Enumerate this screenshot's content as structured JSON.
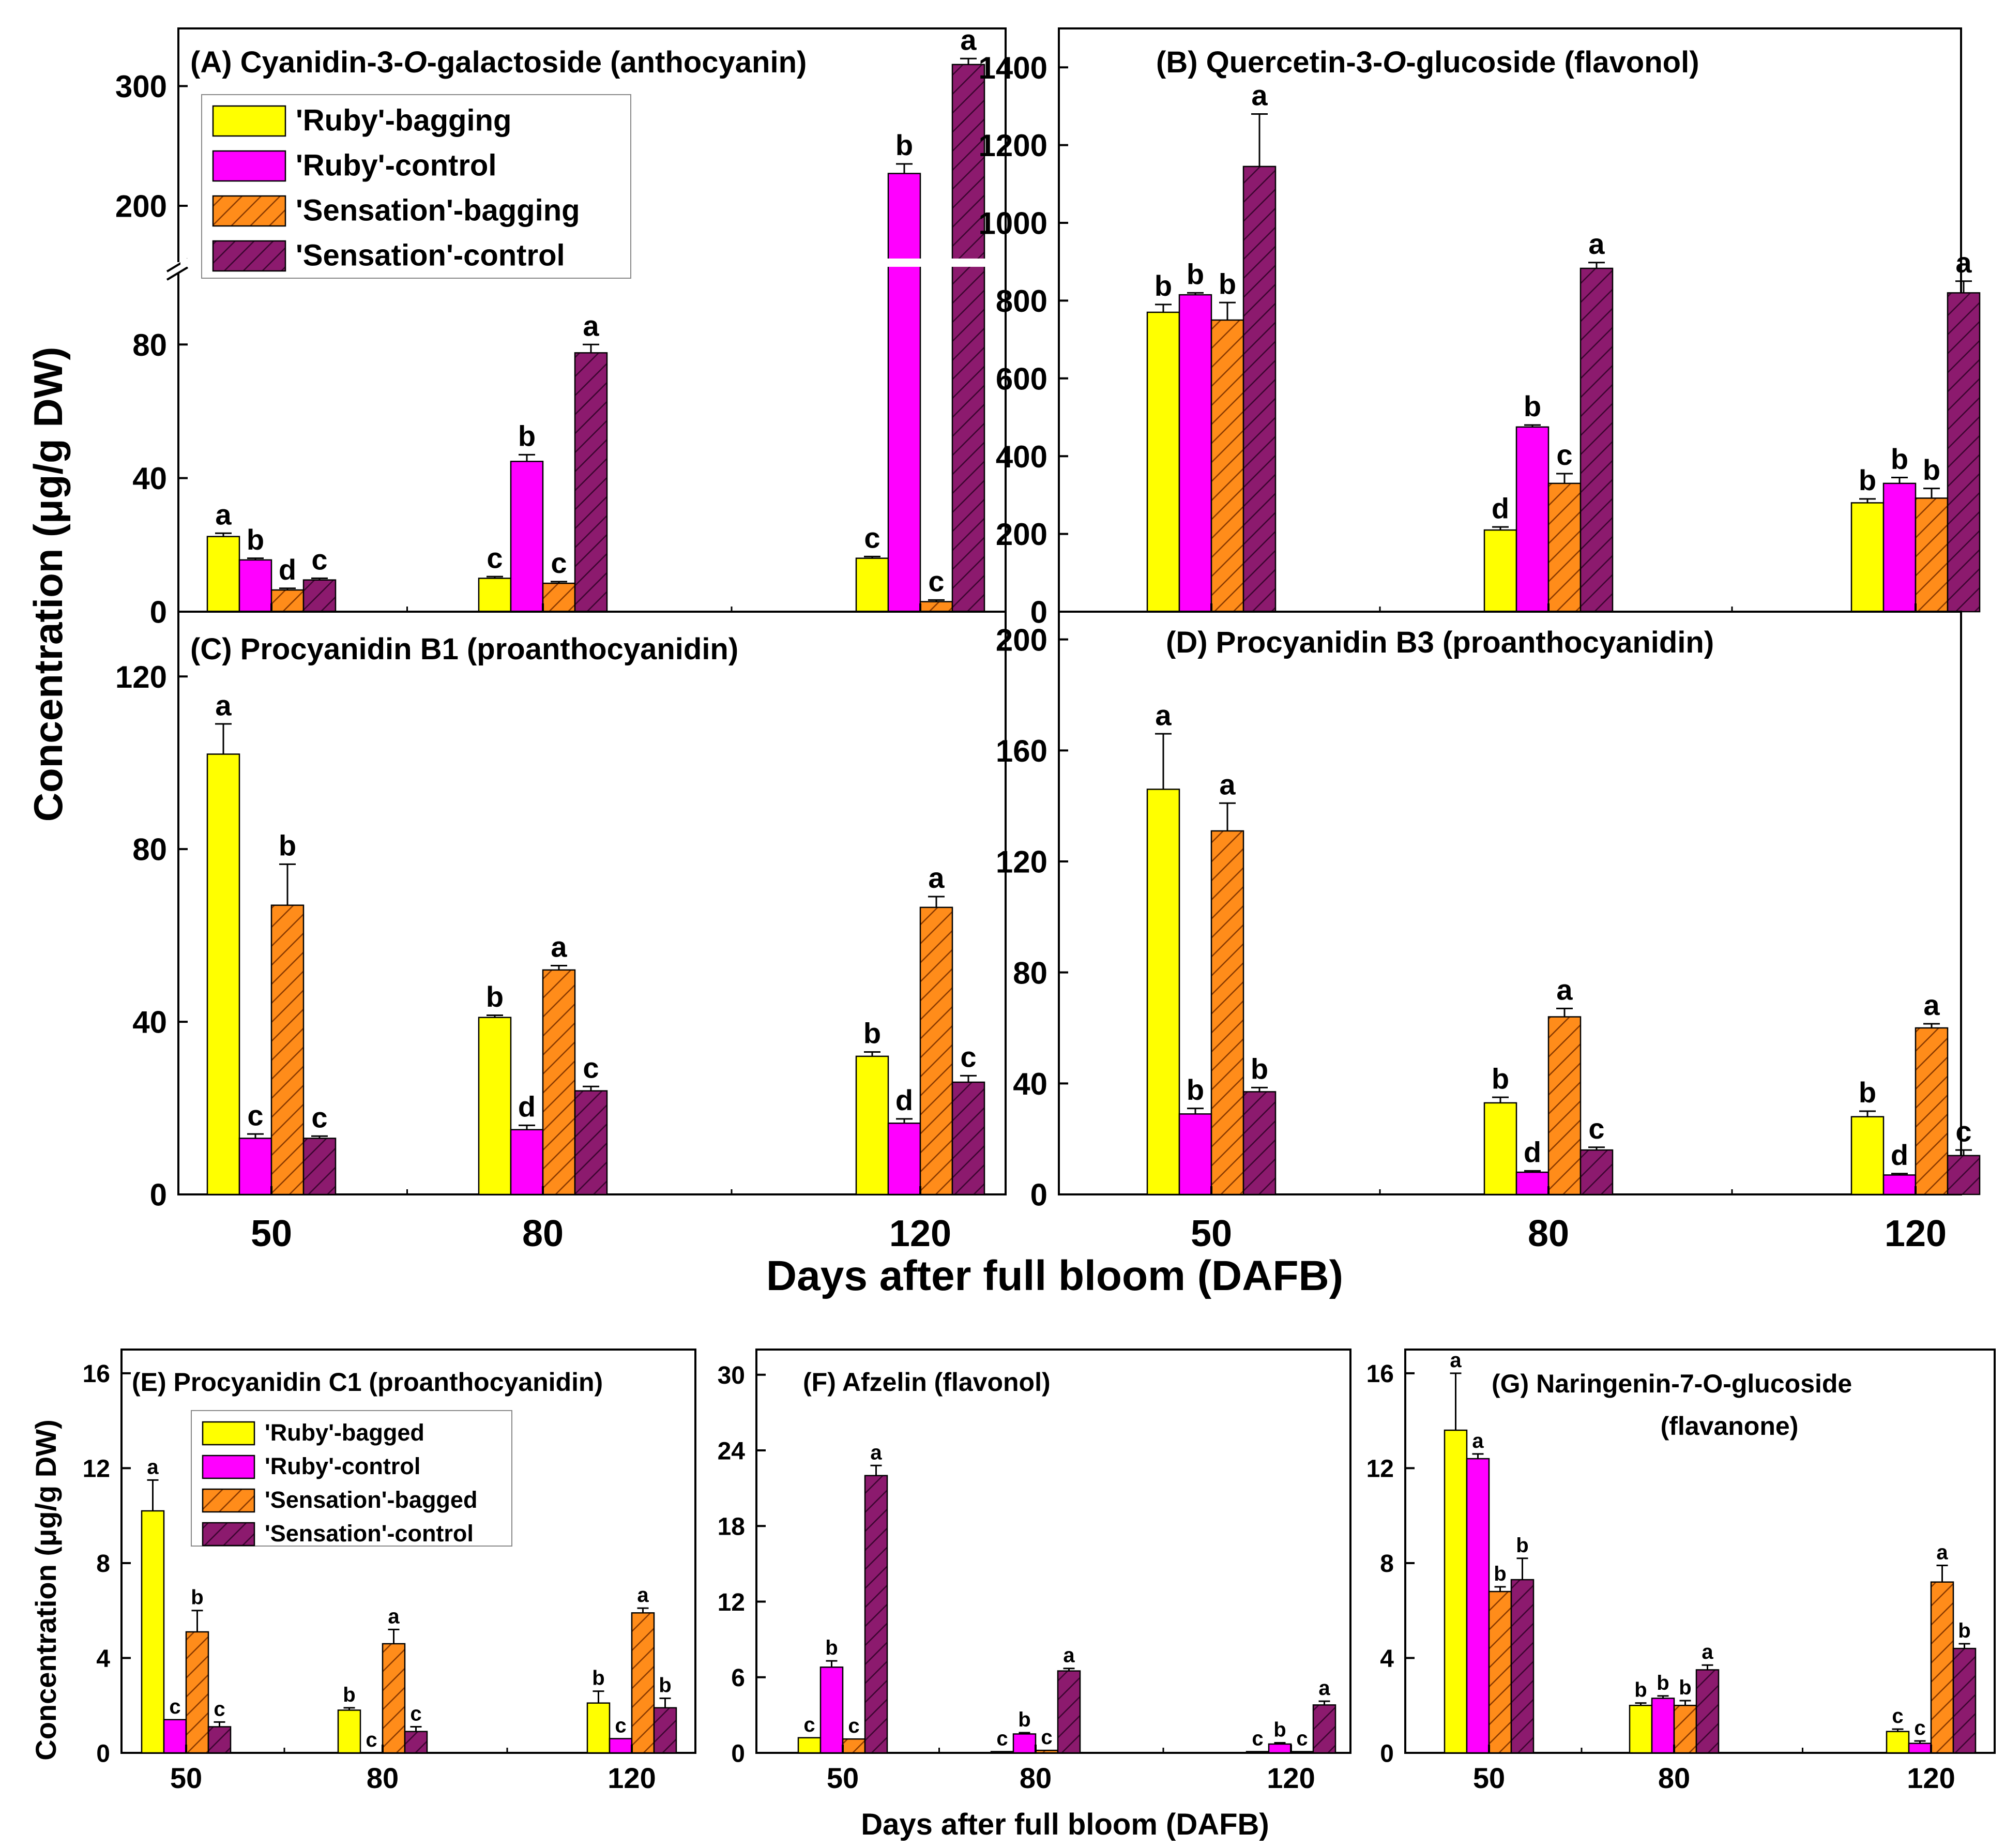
{
  "figure": {
    "top_ylabel": "Concentration (μg/g DW)",
    "top_xlabel": "Days after full bloom (DAFB)",
    "bottom_ylabel": "Concentration (μg/g DW)",
    "bottom_xlabel": "Days after full bloom (DAFB)"
  },
  "series_colors": {
    "ruby_bag": "#ffff00",
    "ruby_ctrl": "#ff00ff",
    "sens_bag": "#ff8c1a",
    "sens_ctrl": "#8c1a6e"
  },
  "chart_data": [
    {
      "id": "A",
      "type": "bar",
      "title": "(A) Cyanidin-3-O-galactoside (anthocyanin)",
      "categories": [
        "50",
        "80",
        "120"
      ],
      "ylim": [
        0,
        330
      ],
      "axis_break": {
        "lower_max": 100,
        "upper_min": 140,
        "upper_max": 330
      },
      "yticks": [
        0,
        40,
        80,
        200,
        300
      ],
      "legend": {
        "position": "top-left",
        "labels": [
          "'Ruby'-bagging",
          "'Ruby'-control",
          "'Sensation'-bagging",
          "'Sensation'-control"
        ]
      },
      "series": [
        {
          "name": "'Ruby'-bagging",
          "values": [
            22.5,
            10,
            16
          ],
          "errors": [
            1,
            0.5,
            0.5
          ],
          "letters": [
            "a",
            "c",
            "c"
          ]
        },
        {
          "name": "'Ruby'-control",
          "values": [
            15.5,
            45,
            227
          ],
          "errors": [
            0.5,
            2,
            8
          ],
          "letters": [
            "b",
            "b",
            "b"
          ]
        },
        {
          "name": "'Sensation'-bagging",
          "values": [
            6.5,
            8.5,
            3
          ],
          "errors": [
            0.5,
            0.5,
            0.5
          ],
          "letters": [
            "d",
            "c",
            "c"
          ]
        },
        {
          "name": "'Sensation'-control",
          "values": [
            9.5,
            77.5,
            318
          ],
          "errors": [
            0.5,
            2.5,
            5
          ],
          "letters": [
            "c",
            "a",
            "a"
          ]
        }
      ]
    },
    {
      "id": "B",
      "type": "bar",
      "title": "(B) Quercetin-3-O-glucoside (flavonol)",
      "categories": [
        "50",
        "80",
        "120"
      ],
      "ylim": [
        0,
        1500
      ],
      "yticks": [
        0,
        200,
        400,
        600,
        800,
        1000,
        1200,
        1400
      ],
      "series": [
        {
          "name": "'Ruby'-bagging",
          "values": [
            770,
            210,
            280
          ],
          "errors": [
            20,
            8,
            10
          ],
          "letters": [
            "b",
            "d",
            "b"
          ]
        },
        {
          "name": "'Ruby'-control",
          "values": [
            815,
            475,
            330
          ],
          "errors": [
            5,
            5,
            15
          ],
          "letters": [
            "b",
            "b",
            "b"
          ]
        },
        {
          "name": "'Sensation'-bagging",
          "values": [
            750,
            330,
            292
          ],
          "errors": [
            45,
            25,
            25
          ],
          "letters": [
            "b",
            "c",
            "b"
          ]
        },
        {
          "name": "'Sensation'-control",
          "values": [
            1145,
            883,
            820
          ],
          "errors": [
            135,
            15,
            30
          ],
          "letters": [
            "a",
            "a",
            "a"
          ]
        }
      ]
    },
    {
      "id": "C",
      "type": "bar",
      "title": "(C) Procyanidin B1 (proanthocyanidin)",
      "categories": [
        "50",
        "80",
        "120"
      ],
      "ylim": [
        0,
        135
      ],
      "yticks": [
        0,
        40,
        80,
        120
      ],
      "series": [
        {
          "name": "'Ruby'-bagging",
          "values": [
            102,
            41,
            32
          ],
          "errors": [
            7,
            0.5,
            1
          ],
          "letters": [
            "a",
            "b",
            "b"
          ]
        },
        {
          "name": "'Ruby'-control",
          "values": [
            13,
            15,
            16.5
          ],
          "errors": [
            1,
            1,
            1
          ],
          "letters": [
            "c",
            "d",
            "d"
          ]
        },
        {
          "name": "'Sensation'-bagging",
          "values": [
            67,
            52,
            66.5
          ],
          "errors": [
            9.5,
            1,
            2.5
          ],
          "letters": [
            "b",
            "a",
            "a"
          ]
        },
        {
          "name": "'Sensation'-control",
          "values": [
            13,
            24,
            26
          ],
          "errors": [
            0.5,
            1,
            1.5
          ],
          "letters": [
            "c",
            "c",
            "c"
          ]
        }
      ]
    },
    {
      "id": "D",
      "type": "bar",
      "title": "(D) Procyanidin B3 (proanthocyanidin)",
      "categories": [
        "50",
        "80",
        "120"
      ],
      "ylim": [
        0,
        210
      ],
      "yticks": [
        0,
        40,
        80,
        120,
        160,
        200
      ],
      "series": [
        {
          "name": "'Ruby'-bagging",
          "values": [
            146,
            33,
            28
          ],
          "errors": [
            20,
            2,
            2
          ],
          "letters": [
            "a",
            "b",
            "b"
          ]
        },
        {
          "name": "'Ruby'-control",
          "values": [
            29,
            8,
            7
          ],
          "errors": [
            2,
            0.5,
            0.5
          ],
          "letters": [
            "b",
            "d",
            "d"
          ]
        },
        {
          "name": "'Sensation'-bagging",
          "values": [
            131,
            64,
            60
          ],
          "errors": [
            10,
            3,
            1.5
          ],
          "letters": [
            "a",
            "a",
            "a"
          ]
        },
        {
          "name": "'Sensation'-control",
          "values": [
            37,
            16,
            14
          ],
          "errors": [
            1.5,
            1,
            2
          ],
          "letters": [
            "b",
            "c",
            "c"
          ]
        }
      ]
    },
    {
      "id": "E",
      "type": "bar",
      "title": "(E) Procyanidin C1 (proanthocyanidin)",
      "categories": [
        "50",
        "80",
        "120"
      ],
      "ylim": [
        0,
        17
      ],
      "yticks": [
        0,
        4,
        8,
        12,
        16
      ],
      "legend": {
        "position": "top-left",
        "labels": [
          "'Ruby'-bagged",
          "'Ruby'-control",
          "'Sensation'-bagged",
          "'Sensation'-control"
        ]
      },
      "series": [
        {
          "name": "'Ruby'-bagged",
          "values": [
            10.2,
            1.8,
            2.1
          ],
          "errors": [
            1.3,
            0.1,
            0.5
          ],
          "letters": [
            "a",
            "b",
            "b"
          ]
        },
        {
          "name": "'Ruby'-control",
          "values": [
            1.4,
            0,
            0.6
          ],
          "errors": [
            0,
            0,
            0
          ],
          "letters": [
            "c",
            "c",
            "c"
          ]
        },
        {
          "name": "'Sensation'-bagged",
          "values": [
            5.1,
            4.6,
            5.9
          ],
          "errors": [
            0.9,
            0.6,
            0.2
          ],
          "letters": [
            "b",
            "a",
            "a"
          ]
        },
        {
          "name": "'Sensation'-control",
          "values": [
            1.1,
            0.9,
            1.9
          ],
          "errors": [
            0.2,
            0.2,
            0.4
          ],
          "letters": [
            "c",
            "c",
            "b"
          ]
        }
      ]
    },
    {
      "id": "F",
      "type": "bar",
      "title": "(F) Afzelin (flavonol)",
      "categories": [
        "50",
        "80",
        "120"
      ],
      "ylim": [
        0,
        32
      ],
      "yticks": [
        0,
        6,
        12,
        18,
        24,
        30
      ],
      "series": [
        {
          "name": "'Ruby'-bagged",
          "values": [
            1.2,
            0.1,
            0.1
          ],
          "errors": [
            0,
            0,
            0
          ],
          "letters": [
            "c",
            "c",
            "c"
          ]
        },
        {
          "name": "'Ruby'-control",
          "values": [
            6.8,
            1.5,
            0.7
          ],
          "errors": [
            0.5,
            0.1,
            0.1
          ],
          "letters": [
            "b",
            "b",
            "b"
          ]
        },
        {
          "name": "'Sensation'-bagged",
          "values": [
            1.1,
            0.2,
            0.1
          ],
          "errors": [
            0,
            0,
            0
          ],
          "letters": [
            "c",
            "c",
            "c"
          ]
        },
        {
          "name": "'Sensation'-control",
          "values": [
            22,
            6.5,
            3.8
          ],
          "errors": [
            0.8,
            0.2,
            0.3
          ],
          "letters": [
            "a",
            "a",
            "a"
          ]
        }
      ]
    },
    {
      "id": "G",
      "type": "bar",
      "title": "(G) Naringenin-7-O-glucoside",
      "subtitle": "(flavanone)",
      "categories": [
        "50",
        "80",
        "120"
      ],
      "ylim": [
        0,
        17
      ],
      "yticks": [
        0,
        4,
        8,
        12,
        16
      ],
      "series": [
        {
          "name": "'Ruby'-bagged",
          "values": [
            13.6,
            2.0,
            0.9
          ],
          "errors": [
            2.4,
            0.1,
            0.1
          ],
          "letters": [
            "a",
            "b",
            "c"
          ]
        },
        {
          "name": "'Ruby'-control",
          "values": [
            12.4,
            2.3,
            0.4
          ],
          "errors": [
            0.2,
            0.1,
            0.1
          ],
          "letters": [
            "a",
            "b",
            "c"
          ]
        },
        {
          "name": "'Sensation'-bagged",
          "values": [
            6.8,
            2.0,
            7.2
          ],
          "errors": [
            0.2,
            0.2,
            0.7
          ],
          "letters": [
            "b",
            "b",
            "a"
          ]
        },
        {
          "name": "'Sensation'-control",
          "values": [
            7.3,
            3.5,
            4.4
          ],
          "errors": [
            0.9,
            0.2,
            0.2
          ],
          "letters": [
            "b",
            "a",
            "b"
          ]
        }
      ]
    }
  ]
}
